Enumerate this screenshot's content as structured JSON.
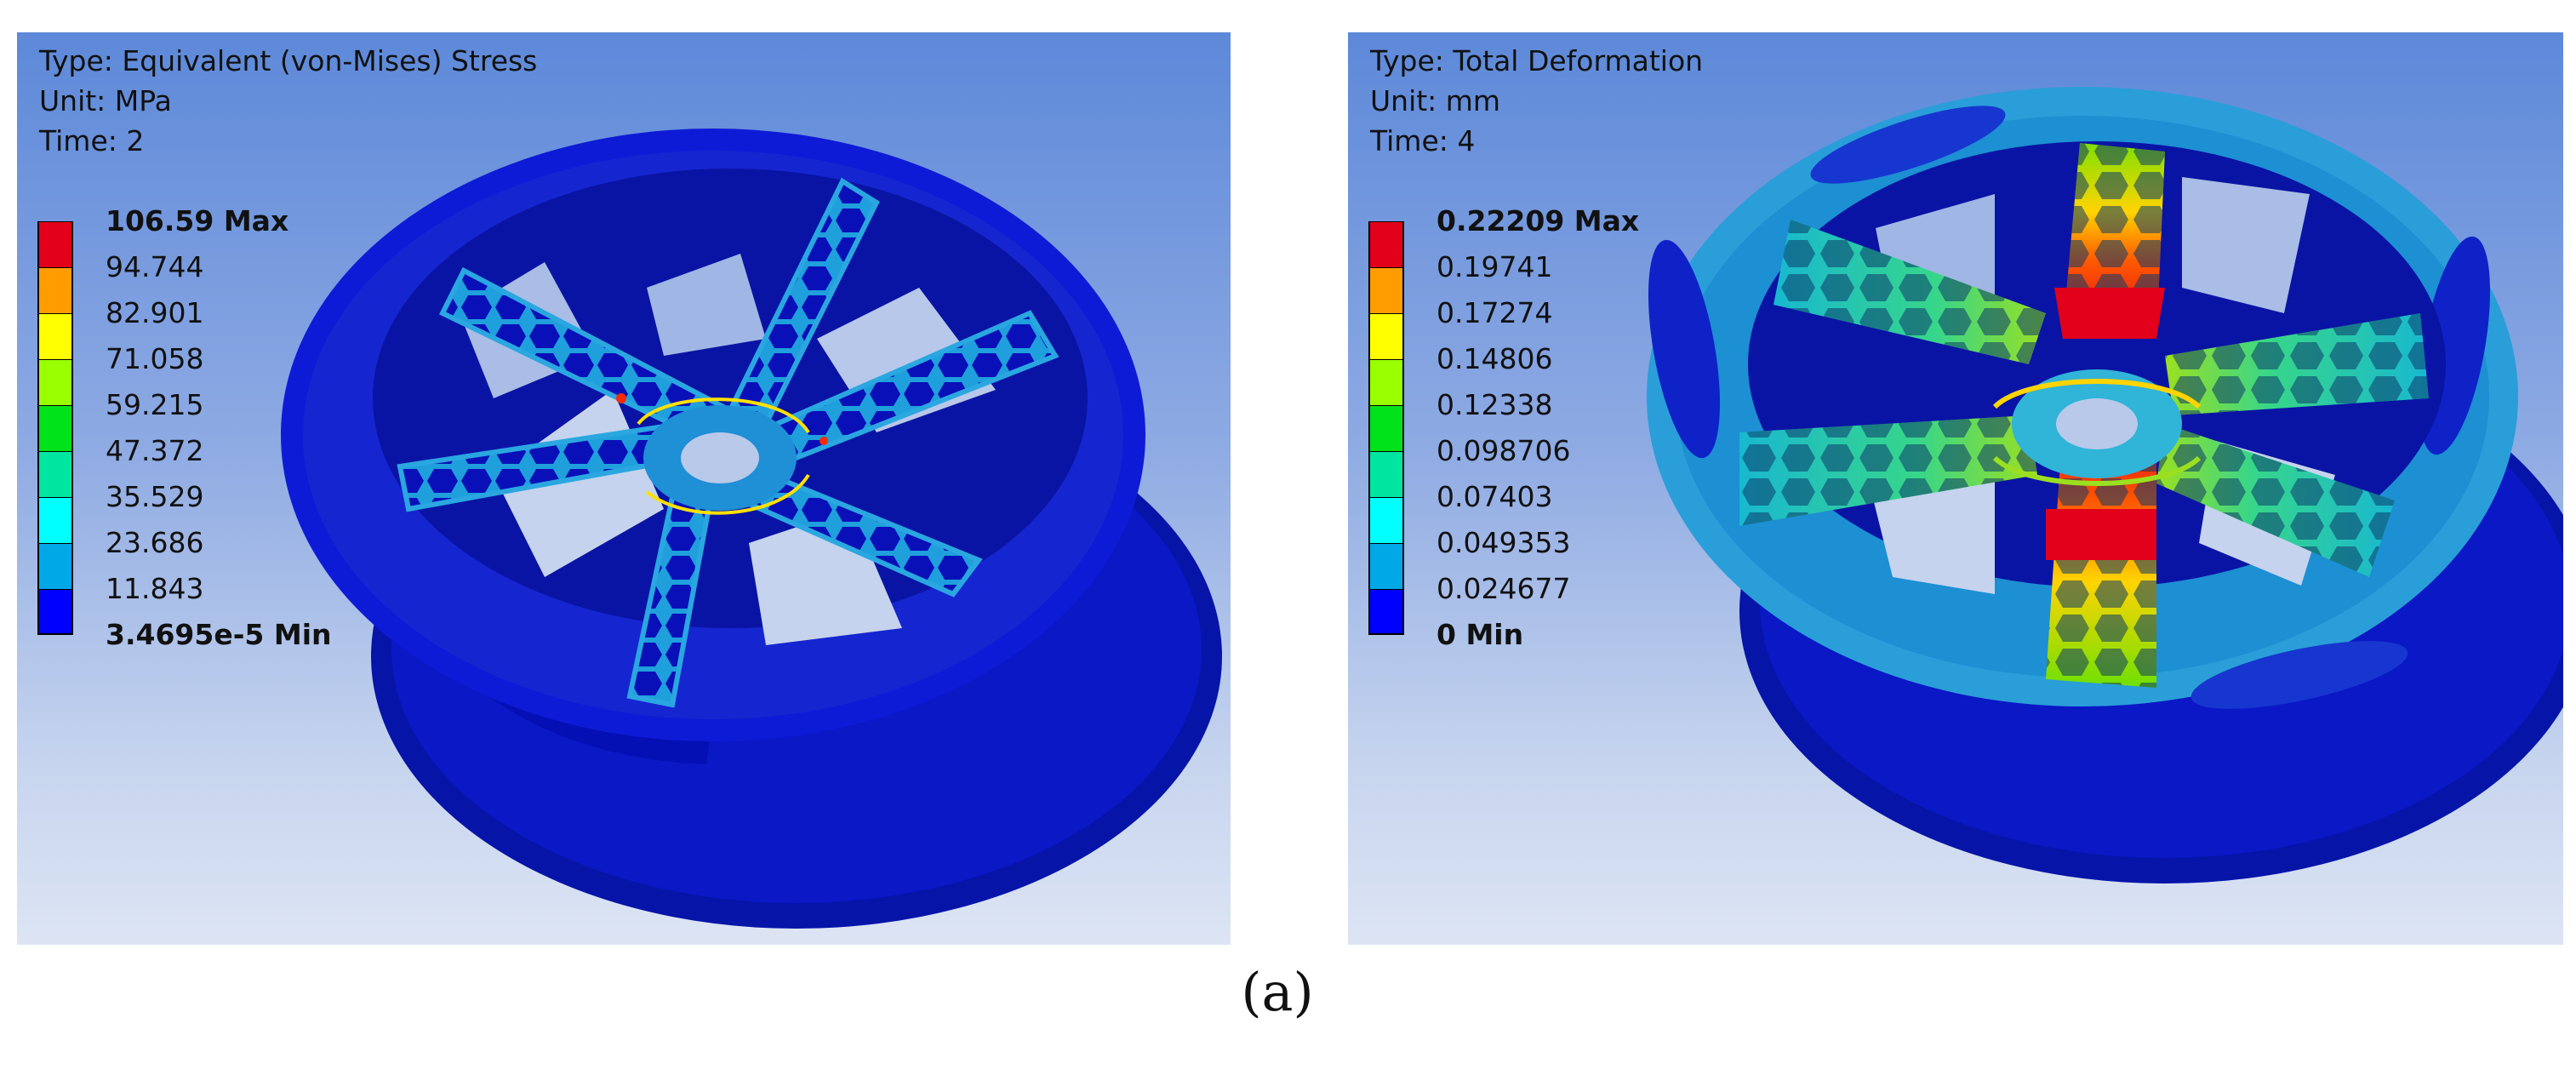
{
  "panels": [
    {
      "type_line": "Type: Equivalent (von-Mises) Stress",
      "unit_line": "Unit: MPa",
      "time_line": "Time: 2",
      "legend": [
        {
          "label": "106.59 Max",
          "color": "#e2001a"
        },
        {
          "label": "94.744",
          "color": "#ff9d00"
        },
        {
          "label": "82.901",
          "color": "#ffff00"
        },
        {
          "label": "71.058",
          "color": "#9aff00"
        },
        {
          "label": "59.215",
          "color": "#00e21a"
        },
        {
          "label": "47.372",
          "color": "#00e5a0"
        },
        {
          "label": "35.529",
          "color": "#00ffff"
        },
        {
          "label": "23.686",
          "color": "#00a8e8"
        },
        {
          "label": "11.843",
          "color": "#0000ff"
        }
      ],
      "legend_min": "3.4695e-5 Min"
    },
    {
      "type_line": "Type: Total Deformation",
      "unit_line": "Unit: mm",
      "time_line": "Time: 4",
      "legend": [
        {
          "label": "0.22209 Max",
          "color": "#e2001a"
        },
        {
          "label": "0.19741",
          "color": "#ff9d00"
        },
        {
          "label": "0.17274",
          "color": "#ffff00"
        },
        {
          "label": "0.14806",
          "color": "#9aff00"
        },
        {
          "label": "0.12338",
          "color": "#00e21a"
        },
        {
          "label": "0.098706",
          "color": "#00e5a0"
        },
        {
          "label": "0.07403",
          "color": "#00ffff"
        },
        {
          "label": "0.049353",
          "color": "#00a8e8"
        },
        {
          "label": "0.024677",
          "color": "#0000ff"
        }
      ],
      "legend_min": "0 Min"
    }
  ],
  "caption": "(a)"
}
